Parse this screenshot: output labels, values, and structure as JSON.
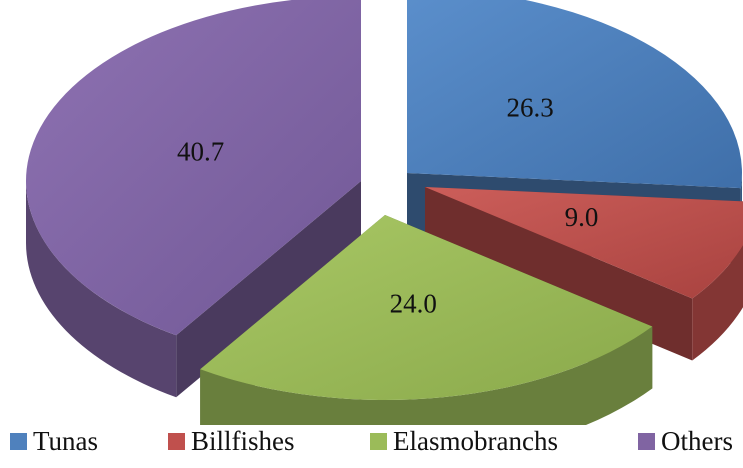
{
  "chart_data": {
    "type": "pie",
    "style": "3d-exploded",
    "categories": [
      "Tunas",
      "Billfishes",
      "Elasmobranchs",
      "Others"
    ],
    "values": [
      26.3,
      9.0,
      24.0,
      40.7
    ],
    "data_labels": [
      "26.3",
      "9.0",
      "24.0",
      "40.7"
    ],
    "colors": [
      "#4F81BD",
      "#C0504D",
      "#9BBB59",
      "#8064A2"
    ],
    "legend": {
      "placement": "bottom",
      "entries": [
        "Tunas",
        "Billfishes",
        "Elasmobranchs",
        "Others"
      ]
    }
  }
}
